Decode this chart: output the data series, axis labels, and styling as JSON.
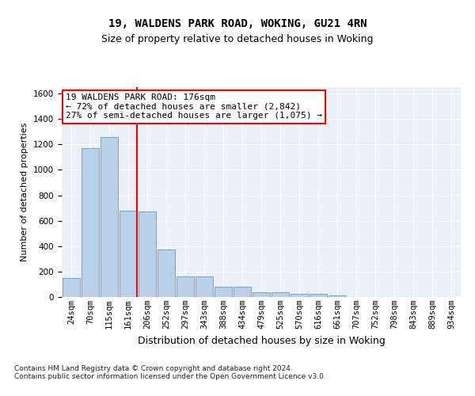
{
  "title1": "19, WALDENS PARK ROAD, WOKING, GU21 4RN",
  "title2": "Size of property relative to detached houses in Woking",
  "xlabel": "Distribution of detached houses by size in Woking",
  "ylabel": "Number of detached properties",
  "footnote": "Contains HM Land Registry data © Crown copyright and database right 2024.\nContains public sector information licensed under the Open Government Licence v3.0.",
  "categories": [
    "24sqm",
    "70sqm",
    "115sqm",
    "161sqm",
    "206sqm",
    "252sqm",
    "297sqm",
    "343sqm",
    "388sqm",
    "434sqm",
    "479sqm",
    "525sqm",
    "570sqm",
    "616sqm",
    "661sqm",
    "707sqm",
    "752sqm",
    "798sqm",
    "843sqm",
    "889sqm",
    "934sqm"
  ],
  "values": [
    150,
    1170,
    1255,
    680,
    675,
    375,
    165,
    165,
    80,
    80,
    38,
    35,
    22,
    22,
    12,
    0,
    0,
    0,
    0,
    0,
    0
  ],
  "bar_color": "#b8d0e8",
  "bar_edge_color": "#5a9fd4",
  "vline_x_pos": 3.45,
  "vline_color": "red",
  "annotation_text": "19 WALDENS PARK ROAD: 176sqm\n← 72% of detached houses are smaller (2,842)\n27% of semi-detached houses are larger (1,075) →",
  "annotation_box_color": "white",
  "annotation_box_edge_color": "red",
  "ylim": [
    0,
    1650
  ],
  "yticks": [
    0,
    200,
    400,
    600,
    800,
    1000,
    1200,
    1400,
    1600
  ],
  "background_color": "#eaf0f8",
  "grid_color": "white",
  "title1_fontsize": 10,
  "title2_fontsize": 9,
  "annotation_fontsize": 8,
  "ylabel_fontsize": 8,
  "xlabel_fontsize": 9,
  "tick_fontsize": 7.5
}
